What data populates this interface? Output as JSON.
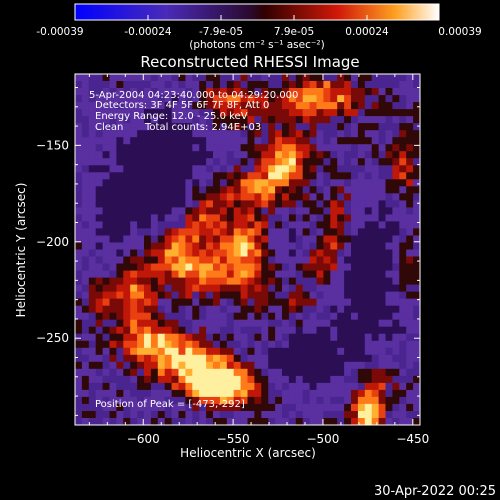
{
  "colorbar": {
    "tick_labels": [
      "-0.00039",
      "-0.00024",
      "-7.9e-05",
      "7.9e-05",
      "0.00024",
      "0.00039"
    ],
    "units_label": "(photons cm⁻² s⁻¹ asec⁻²)"
  },
  "title": "Reconstructed RHESSI Image",
  "info": {
    "time_range": "5-Apr-2004 04:23:40.000 to 04:29:20.000",
    "detectors": "Detectors: 3F 4F 5F 6F 7F 8F, Att 0",
    "energy": "Energy Range: 12.0 - 25.0 keV",
    "method": "Clean",
    "counts": "Total counts: 2.94E+03"
  },
  "peak_label": "Position of Peak = [-473,-292]",
  "x_axis": {
    "label": "Heliocentric X (arcsec)",
    "range": [
      -638,
      -446
    ],
    "ticks": [
      -600,
      -550,
      -500,
      -450
    ],
    "tick_labels": [
      "−600",
      "−550",
      "−500",
      "−450"
    ]
  },
  "y_axis": {
    "label": "Heliocentric Y (arcsec)",
    "range": [
      -295,
      -113
    ],
    "ticks": [
      -150,
      -200,
      -250
    ],
    "tick_labels": [
      "−150",
      "−200",
      "−250"
    ]
  },
  "timestamp": "30-Apr-2022 00:25",
  "colors": {
    "background": "#000000",
    "purple": "#5a2e9c",
    "dark_purple": "#2a1050",
    "red": "#c01808",
    "orange": "#f06010",
    "yellow": "#ffe060"
  }
}
